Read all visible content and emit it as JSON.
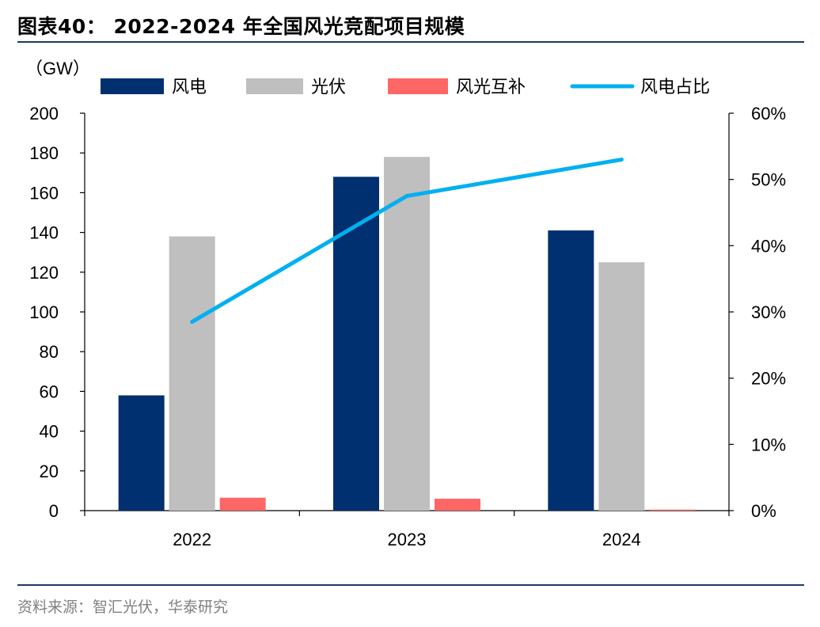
{
  "header": {
    "title": "图表40： 2022-2024 年全国风光竞配项目规模"
  },
  "footer": {
    "source": "资料来源：智汇光伏，华泰研究"
  },
  "chart_data": {
    "type": "bar",
    "categories": [
      "2022",
      "2023",
      "2024"
    ],
    "series": [
      {
        "name": "风电",
        "type": "bar",
        "axis": "left",
        "color": "#003070",
        "values": [
          58,
          168,
          141
        ]
      },
      {
        "name": "光伏",
        "type": "bar",
        "axis": "left",
        "color": "#bfbfbf",
        "values": [
          138,
          178,
          125
        ]
      },
      {
        "name": "风光互补",
        "type": "bar",
        "axis": "left",
        "color": "#ff6666",
        "values": [
          6.5,
          6,
          0.5
        ]
      },
      {
        "name": "风电占比",
        "type": "line",
        "axis": "right",
        "color": "#00b0f0",
        "values": [
          28.5,
          47.5,
          53
        ]
      }
    ],
    "left_axis": {
      "unit_label": "（GW）",
      "min": 0,
      "max": 200,
      "step": 20,
      "ticks": [
        "0",
        "20",
        "40",
        "60",
        "80",
        "100",
        "120",
        "140",
        "160",
        "180",
        "200"
      ]
    },
    "right_axis": {
      "min": 0,
      "max": 60,
      "step": 10,
      "ticks": [
        "0%",
        "10%",
        "20%",
        "30%",
        "40%",
        "50%",
        "60%"
      ]
    },
    "legend_position": "top",
    "grid": false
  }
}
